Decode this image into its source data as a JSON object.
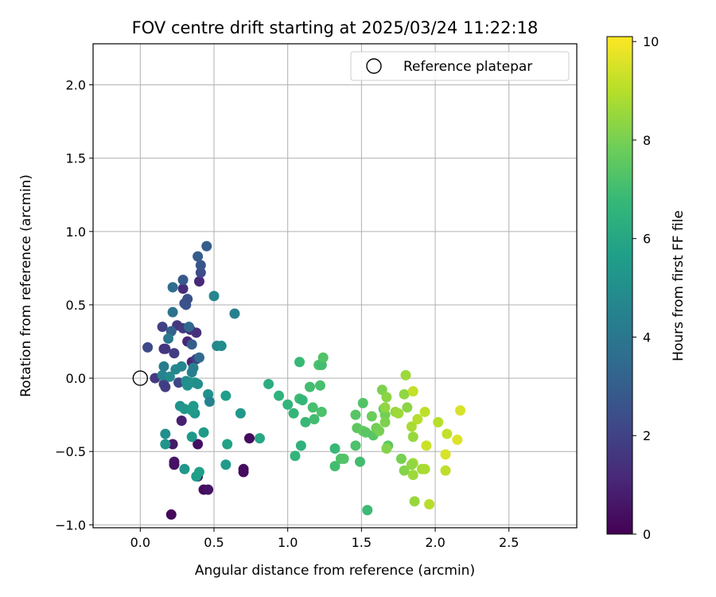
{
  "chart_data": {
    "type": "scatter",
    "title": "FOV centre drift starting at 2025/03/24 11:22:18",
    "xlabel": "Angular distance from reference (arcmin)",
    "ylabel": "Rotation from reference (arcmin)",
    "xlim": [
      -0.32,
      2.96
    ],
    "ylim": [
      -1.02,
      2.28
    ],
    "xticks": [
      "0.0",
      "0.5",
      "1.0",
      "1.5",
      "2.0",
      "2.5"
    ],
    "yticks": [
      "−1.0",
      "−0.5",
      "0.0",
      "0.5",
      "1.0",
      "1.5",
      "2.0"
    ],
    "xtick_values": [
      0.0,
      0.5,
      1.0,
      1.5,
      2.0,
      2.5
    ],
    "ytick_values": [
      -1.0,
      -0.5,
      0.0,
      0.5,
      1.0,
      1.5,
      2.0
    ],
    "grid": true,
    "legend": {
      "position": "top-right",
      "entries": [
        "Reference platepar"
      ]
    },
    "reference_point": {
      "x": 0.0,
      "y": 0.0
    },
    "colorbar": {
      "label": "Hours from first FF file",
      "range": [
        0,
        10.1
      ],
      "ticks": [
        "0",
        "2",
        "4",
        "6",
        "8",
        "10"
      ],
      "tick_values": [
        0,
        2,
        4,
        6,
        8,
        10
      ],
      "colormap": "viridis"
    },
    "points": [
      {
        "x": 0.21,
        "y": -0.93,
        "h": 0.2
      },
      {
        "x": 0.43,
        "y": -0.76,
        "h": 0.3
      },
      {
        "x": 0.46,
        "y": -0.76,
        "h": 0.5
      },
      {
        "x": 0.39,
        "y": -0.67,
        "h": 0.4
      },
      {
        "x": 0.7,
        "y": -0.62,
        "h": 0.4
      },
      {
        "x": 0.7,
        "y": -0.64,
        "h": 0.3
      },
      {
        "x": 0.23,
        "y": -0.57,
        "h": 0.6
      },
      {
        "x": 0.23,
        "y": -0.59,
        "h": 0.5
      },
      {
        "x": 0.22,
        "y": -0.45,
        "h": 0.7
      },
      {
        "x": 0.39,
        "y": -0.45,
        "h": 0.4
      },
      {
        "x": 0.74,
        "y": -0.41,
        "h": 0.3
      },
      {
        "x": 0.28,
        "y": -0.29,
        "h": 0.9
      },
      {
        "x": 0.35,
        "y": 0.11,
        "h": 1.0
      },
      {
        "x": 0.4,
        "y": 0.66,
        "h": 1.2
      },
      {
        "x": 0.38,
        "y": 0.31,
        "h": 1.4
      },
      {
        "x": 0.34,
        "y": 0.33,
        "h": 1.5
      },
      {
        "x": 0.32,
        "y": 0.25,
        "h": 1.1
      },
      {
        "x": 0.29,
        "y": 0.61,
        "h": 1.3
      },
      {
        "x": 0.25,
        "y": 0.36,
        "h": 1.6
      },
      {
        "x": 0.29,
        "y": 0.34,
        "h": 1.7
      },
      {
        "x": 0.23,
        "y": 0.17,
        "h": 1.8
      },
      {
        "x": 0.16,
        "y": 0.2,
        "h": 1.5
      },
      {
        "x": 0.17,
        "y": 0.2,
        "h": 1.6
      },
      {
        "x": 0.15,
        "y": 0.35,
        "h": 1.9
      },
      {
        "x": 0.16,
        "y": -0.04,
        "h": 2.0
      },
      {
        "x": 0.17,
        "y": -0.06,
        "h": 1.8
      },
      {
        "x": 0.1,
        "y": 0.0,
        "h": 1.7
      },
      {
        "x": 0.26,
        "y": -0.03,
        "h": 2.1
      },
      {
        "x": 0.05,
        "y": 0.21,
        "h": 2.2
      },
      {
        "x": 0.38,
        "y": 0.13,
        "h": 1.8
      },
      {
        "x": 0.41,
        "y": 0.72,
        "h": 2.3
      },
      {
        "x": 0.3,
        "y": 0.51,
        "h": 2.4
      },
      {
        "x": 0.31,
        "y": 0.5,
        "h": 2.6
      },
      {
        "x": 0.32,
        "y": 0.54,
        "h": 2.5
      },
      {
        "x": 0.41,
        "y": 0.77,
        "h": 2.7
      },
      {
        "x": 0.29,
        "y": 0.67,
        "h": 2.8
      },
      {
        "x": 0.39,
        "y": 0.83,
        "h": 2.9
      },
      {
        "x": 0.45,
        "y": 0.9,
        "h": 3.0
      },
      {
        "x": 0.35,
        "y": 0.23,
        "h": 3.0
      },
      {
        "x": 0.21,
        "y": 0.32,
        "h": 3.1
      },
      {
        "x": 0.33,
        "y": 0.35,
        "h": 3.4
      },
      {
        "x": 0.22,
        "y": 0.62,
        "h": 3.6
      },
      {
        "x": 0.22,
        "y": 0.45,
        "h": 3.8
      },
      {
        "x": 0.4,
        "y": 0.14,
        "h": 3.5
      },
      {
        "x": 0.19,
        "y": 0.27,
        "h": 4.0
      },
      {
        "x": 0.16,
        "y": 0.08,
        "h": 4.2
      },
      {
        "x": 0.35,
        "y": 0.04,
        "h": 4.4
      },
      {
        "x": 0.36,
        "y": 0.07,
        "h": 4.3
      },
      {
        "x": 0.28,
        "y": 0.08,
        "h": 4.6
      },
      {
        "x": 0.24,
        "y": 0.06,
        "h": 4.7
      },
      {
        "x": 0.15,
        "y": 0.02,
        "h": 4.5
      },
      {
        "x": 0.2,
        "y": 0.01,
        "h": 4.8
      },
      {
        "x": 0.31,
        "y": -0.02,
        "h": 4.9
      },
      {
        "x": 0.34,
        "y": -0.03,
        "h": 5.0
      },
      {
        "x": 0.32,
        "y": -0.05,
        "h": 5.1
      },
      {
        "x": 0.37,
        "y": -0.03,
        "h": 5.2
      },
      {
        "x": 0.39,
        "y": -0.04,
        "h": 5.0
      },
      {
        "x": 0.46,
        "y": -0.11,
        "h": 5.1
      },
      {
        "x": 0.47,
        "y": -0.16,
        "h": 4.5
      },
      {
        "x": 0.5,
        "y": 0.56,
        "h": 4.6
      },
      {
        "x": 0.64,
        "y": 0.44,
        "h": 4.4
      },
      {
        "x": 0.52,
        "y": 0.22,
        "h": 4.7
      },
      {
        "x": 0.55,
        "y": 0.22,
        "h": 4.9
      },
      {
        "x": 0.27,
        "y": -0.19,
        "h": 5.2
      },
      {
        "x": 0.3,
        "y": -0.21,
        "h": 5.3
      },
      {
        "x": 0.36,
        "y": -0.19,
        "h": 5.4
      },
      {
        "x": 0.37,
        "y": -0.24,
        "h": 5.3
      },
      {
        "x": 0.35,
        "y": -0.22,
        "h": 5.5
      },
      {
        "x": 0.17,
        "y": -0.38,
        "h": 5.0
      },
      {
        "x": 0.17,
        "y": -0.45,
        "h": 5.2
      },
      {
        "x": 0.35,
        "y": -0.4,
        "h": 5.4
      },
      {
        "x": 0.43,
        "y": -0.37,
        "h": 5.5
      },
      {
        "x": 0.3,
        "y": -0.62,
        "h": 5.3
      },
      {
        "x": 0.38,
        "y": -0.67,
        "h": 5.6
      },
      {
        "x": 0.4,
        "y": -0.64,
        "h": 5.7
      },
      {
        "x": 0.58,
        "y": -0.12,
        "h": 5.6
      },
      {
        "x": 0.68,
        "y": -0.24,
        "h": 5.4
      },
      {
        "x": 0.59,
        "y": -0.45,
        "h": 5.8
      },
      {
        "x": 0.58,
        "y": -0.59,
        "h": 5.5
      },
      {
        "x": 0.81,
        "y": -0.41,
        "h": 6.0
      },
      {
        "x": 0.87,
        "y": -0.04,
        "h": 6.3
      },
      {
        "x": 0.94,
        "y": -0.12,
        "h": 6.5
      },
      {
        "x": 1.0,
        "y": -0.18,
        "h": 6.6
      },
      {
        "x": 1.04,
        "y": -0.24,
        "h": 6.7
      },
      {
        "x": 1.08,
        "y": 0.11,
        "h": 6.8
      },
      {
        "x": 1.08,
        "y": -0.14,
        "h": 6.9
      },
      {
        "x": 1.1,
        "y": -0.15,
        "h": 6.7
      },
      {
        "x": 1.12,
        "y": -0.3,
        "h": 6.8
      },
      {
        "x": 1.15,
        "y": -0.06,
        "h": 7.0
      },
      {
        "x": 1.17,
        "y": -0.2,
        "h": 7.1
      },
      {
        "x": 1.18,
        "y": -0.28,
        "h": 7.0
      },
      {
        "x": 1.21,
        "y": 0.09,
        "h": 7.2
      },
      {
        "x": 1.23,
        "y": 0.09,
        "h": 7.0
      },
      {
        "x": 1.24,
        "y": 0.14,
        "h": 7.3
      },
      {
        "x": 1.22,
        "y": -0.05,
        "h": 7.1
      },
      {
        "x": 1.23,
        "y": -0.23,
        "h": 7.2
      },
      {
        "x": 1.09,
        "y": -0.46,
        "h": 6.5
      },
      {
        "x": 1.05,
        "y": -0.53,
        "h": 6.6
      },
      {
        "x": 1.32,
        "y": -0.48,
        "h": 6.8
      },
      {
        "x": 1.32,
        "y": -0.6,
        "h": 7.0
      },
      {
        "x": 1.36,
        "y": -0.55,
        "h": 7.2
      },
      {
        "x": 1.38,
        "y": -0.55,
        "h": 7.3
      },
      {
        "x": 1.46,
        "y": -0.25,
        "h": 7.4
      },
      {
        "x": 1.46,
        "y": -0.46,
        "h": 7.2
      },
      {
        "x": 1.47,
        "y": -0.34,
        "h": 7.5
      },
      {
        "x": 1.49,
        "y": -0.57,
        "h": 7.0
      },
      {
        "x": 1.51,
        "y": -0.17,
        "h": 7.3
      },
      {
        "x": 1.51,
        "y": -0.36,
        "h": 7.6
      },
      {
        "x": 1.53,
        "y": -0.37,
        "h": 7.5
      },
      {
        "x": 1.54,
        "y": -0.9,
        "h": 6.9
      },
      {
        "x": 1.57,
        "y": -0.26,
        "h": 7.8
      },
      {
        "x": 1.58,
        "y": -0.39,
        "h": 7.4
      },
      {
        "x": 1.6,
        "y": -0.34,
        "h": 7.9
      },
      {
        "x": 1.62,
        "y": -0.36,
        "h": 8.0
      },
      {
        "x": 1.64,
        "y": -0.08,
        "h": 8.1
      },
      {
        "x": 1.65,
        "y": -0.21,
        "h": 7.6
      },
      {
        "x": 1.66,
        "y": -0.25,
        "h": 7.9
      },
      {
        "x": 1.67,
        "y": -0.13,
        "h": 8.3
      },
      {
        "x": 1.66,
        "y": -0.3,
        "h": 8.1
      },
      {
        "x": 1.68,
        "y": -0.46,
        "h": 7.5
      },
      {
        "x": 1.67,
        "y": -0.48,
        "h": 8.2
      },
      {
        "x": 1.66,
        "y": -0.2,
        "h": 8.4
      },
      {
        "x": 1.73,
        "y": -0.23,
        "h": 8.5
      },
      {
        "x": 1.75,
        "y": -0.24,
        "h": 8.6
      },
      {
        "x": 1.77,
        "y": -0.55,
        "h": 8.0
      },
      {
        "x": 1.79,
        "y": -0.63,
        "h": 8.2
      },
      {
        "x": 1.79,
        "y": -0.11,
        "h": 8.4
      },
      {
        "x": 1.8,
        "y": 0.02,
        "h": 8.6
      },
      {
        "x": 1.81,
        "y": -0.2,
        "h": 8.3
      },
      {
        "x": 1.84,
        "y": -0.33,
        "h": 8.8
      },
      {
        "x": 1.85,
        "y": -0.4,
        "h": 8.5
      },
      {
        "x": 1.85,
        "y": -0.58,
        "h": 8.7
      },
      {
        "x": 1.85,
        "y": -0.66,
        "h": 8.6
      },
      {
        "x": 1.84,
        "y": -0.59,
        "h": 8.4
      },
      {
        "x": 1.86,
        "y": -0.84,
        "h": 8.5
      },
      {
        "x": 1.85,
        "y": -0.09,
        "h": 9.2
      },
      {
        "x": 1.88,
        "y": -0.28,
        "h": 9.0
      },
      {
        "x": 1.91,
        "y": -0.62,
        "h": 8.7
      },
      {
        "x": 1.93,
        "y": -0.62,
        "h": 8.8
      },
      {
        "x": 1.93,
        "y": -0.23,
        "h": 9.1
      },
      {
        "x": 1.94,
        "y": -0.46,
        "h": 9.3
      },
      {
        "x": 1.96,
        "y": -0.86,
        "h": 9.0
      },
      {
        "x": 2.02,
        "y": -0.3,
        "h": 9.0
      },
      {
        "x": 2.07,
        "y": -0.52,
        "h": 9.5
      },
      {
        "x": 2.07,
        "y": -0.63,
        "h": 9.1
      },
      {
        "x": 2.08,
        "y": -0.38,
        "h": 9.2
      },
      {
        "x": 2.15,
        "y": -0.42,
        "h": 9.6
      },
      {
        "x": 2.17,
        "y": -0.22,
        "h": 9.5
      }
    ]
  }
}
